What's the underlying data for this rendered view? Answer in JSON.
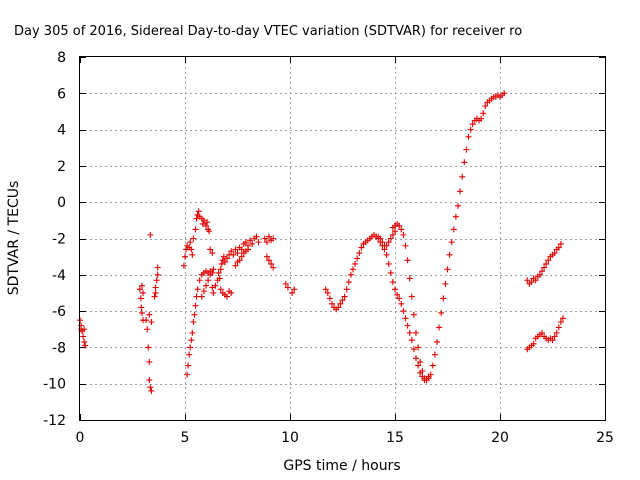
{
  "chart_data": {
    "type": "scatter",
    "title": "Day 305 of 2016, Sidereal Day-to-day VTEC variation (SDTVAR) for receiver ro",
    "xlabel": "GPS time / hours",
    "ylabel": "SDTVAR / TECUs",
    "xlim": [
      0,
      25
    ],
    "ylim": [
      -12,
      8
    ],
    "x_ticks": [
      0,
      5,
      10,
      15,
      20,
      25
    ],
    "y_ticks": [
      -12,
      -10,
      -8,
      -6,
      -4,
      -2,
      0,
      2,
      4,
      6,
      8
    ],
    "grid": true,
    "marker": "+",
    "color": "#e00000",
    "segments": [
      [
        [
          0.0,
          -6.5
        ],
        [
          0.05,
          -6.8
        ],
        [
          0.1,
          -7.1
        ],
        [
          0.15,
          -7.4
        ],
        [
          0.2,
          -7.7
        ],
        [
          0.25,
          -7.9
        ],
        [
          0.2,
          -7.0
        ],
        [
          0.05,
          -7.0
        ]
      ],
      [
        [
          2.85,
          -4.8
        ],
        [
          2.9,
          -5.3
        ],
        [
          2.92,
          -5.8
        ],
        [
          2.95,
          -6.1
        ],
        [
          3.0,
          -6.5
        ],
        [
          2.95,
          -4.6
        ],
        [
          3.0,
          -5.0
        ]
      ],
      [
        [
          3.15,
          -6.5
        ],
        [
          3.2,
          -7.0
        ],
        [
          3.25,
          -8.0
        ],
        [
          3.3,
          -8.8
        ],
        [
          3.3,
          -9.8
        ],
        [
          3.35,
          -10.2
        ],
        [
          3.4,
          -10.4
        ],
        [
          3.3,
          -6.2
        ],
        [
          3.4,
          -6.6
        ],
        [
          3.35,
          -1.8
        ]
      ],
      [
        [
          3.55,
          -5.2
        ],
        [
          3.6,
          -4.7
        ],
        [
          3.65,
          -4.3
        ],
        [
          3.7,
          -4.0
        ],
        [
          3.7,
          -3.6
        ],
        [
          3.6,
          -5.0
        ]
      ],
      [
        [
          4.95,
          -3.5
        ],
        [
          5.0,
          -3.0
        ],
        [
          5.05,
          -2.6
        ],
        [
          5.1,
          -2.4
        ],
        [
          5.2,
          -2.5
        ],
        [
          5.25,
          -2.2
        ],
        [
          5.3,
          -2.6
        ],
        [
          5.35,
          -2.9
        ],
        [
          5.4,
          -2.0
        ],
        [
          5.5,
          -1.5
        ],
        [
          5.55,
          -0.9
        ],
        [
          5.6,
          -0.7
        ],
        [
          5.65,
          -0.5
        ],
        [
          5.7,
          -0.8
        ],
        [
          5.8,
          -0.9
        ],
        [
          5.85,
          -1.2
        ],
        [
          5.9,
          -1.0
        ],
        [
          6.0,
          -1.3
        ],
        [
          6.05,
          -1.1
        ],
        [
          6.1,
          -1.5
        ],
        [
          6.15,
          -1.6
        ],
        [
          6.2,
          -2.6
        ],
        [
          6.3,
          -2.8
        ]
      ],
      [
        [
          5.1,
          -9.5
        ],
        [
          5.15,
          -9.0
        ],
        [
          5.2,
          -8.4
        ],
        [
          5.25,
          -8.0
        ],
        [
          5.3,
          -7.6
        ],
        [
          5.35,
          -7.2
        ],
        [
          5.4,
          -6.6
        ],
        [
          5.45,
          -6.2
        ],
        [
          5.5,
          -5.7
        ],
        [
          5.55,
          -5.2
        ],
        [
          5.6,
          -4.8
        ],
        [
          5.7,
          -4.3
        ],
        [
          5.8,
          -4.0
        ],
        [
          5.9,
          -3.9
        ],
        [
          6.0,
          -3.8
        ],
        [
          6.1,
          -3.9
        ],
        [
          6.2,
          -3.8
        ],
        [
          6.3,
          -3.9
        ],
        [
          6.35,
          -3.7
        ]
      ],
      [
        [
          5.8,
          -5.2
        ],
        [
          5.9,
          -4.9
        ],
        [
          6.0,
          -4.6
        ],
        [
          6.1,
          -4.3
        ],
        [
          6.2,
          -4.0
        ],
        [
          6.3,
          -4.7
        ],
        [
          6.35,
          -5.0
        ],
        [
          6.45,
          -4.6
        ],
        [
          6.55,
          -4.3
        ],
        [
          6.6,
          -3.9
        ],
        [
          6.65,
          -4.2
        ],
        [
          6.7,
          -3.7
        ],
        [
          6.75,
          -3.4
        ],
        [
          6.8,
          -3.2
        ],
        [
          6.85,
          -3.0
        ],
        [
          6.9,
          -3.3
        ],
        [
          7.0,
          -3.1
        ],
        [
          7.1,
          -2.9
        ],
        [
          7.2,
          -2.7
        ],
        [
          7.3,
          -2.9
        ],
        [
          7.4,
          -2.6
        ],
        [
          7.5,
          -2.8
        ],
        [
          7.6,
          -2.5
        ],
        [
          7.7,
          -2.6
        ],
        [
          7.8,
          -2.3
        ],
        [
          7.9,
          -2.2
        ],
        [
          8.0,
          -2.4
        ],
        [
          8.1,
          -2.1
        ],
        [
          8.2,
          -2.3
        ],
        [
          8.3,
          -2.0
        ],
        [
          8.4,
          -1.9
        ],
        [
          8.5,
          -2.2
        ]
      ],
      [
        [
          6.7,
          -4.8
        ],
        [
          6.8,
          -5.0
        ],
        [
          6.9,
          -5.1
        ],
        [
          7.0,
          -5.2
        ],
        [
          7.1,
          -4.9
        ],
        [
          7.2,
          -5.0
        ]
      ],
      [
        [
          7.4,
          -3.5
        ],
        [
          7.5,
          -3.3
        ],
        [
          7.6,
          -3.2
        ],
        [
          7.7,
          -3.0
        ],
        [
          7.8,
          -2.8
        ],
        [
          7.9,
          -2.7
        ],
        [
          8.0,
          -2.6
        ]
      ],
      [
        [
          8.8,
          -2.0
        ],
        [
          8.9,
          -2.2
        ],
        [
          9.0,
          -1.9
        ],
        [
          9.1,
          -2.1
        ],
        [
          9.2,
          -2.0
        ],
        [
          8.9,
          -3.0
        ],
        [
          9.0,
          -3.2
        ],
        [
          9.1,
          -3.4
        ],
        [
          9.2,
          -3.6
        ]
      ],
      [
        [
          9.8,
          -4.5
        ],
        [
          9.9,
          -4.7
        ],
        [
          10.1,
          -5.0
        ],
        [
          10.2,
          -4.8
        ]
      ],
      [
        [
          11.7,
          -4.8
        ],
        [
          11.8,
          -5.0
        ],
        [
          11.9,
          -5.3
        ],
        [
          12.0,
          -5.6
        ],
        [
          12.1,
          -5.8
        ],
        [
          12.2,
          -5.9
        ],
        [
          12.3,
          -5.8
        ],
        [
          12.4,
          -5.6
        ],
        [
          12.5,
          -5.4
        ],
        [
          12.6,
          -5.2
        ],
        [
          12.7,
          -4.8
        ],
        [
          12.8,
          -4.4
        ],
        [
          12.9,
          -4.0
        ],
        [
          13.0,
          -3.7
        ],
        [
          13.1,
          -3.4
        ],
        [
          13.2,
          -3.1
        ],
        [
          13.3,
          -2.8
        ],
        [
          13.4,
          -2.5
        ],
        [
          13.5,
          -2.3
        ],
        [
          13.6,
          -2.2
        ],
        [
          13.7,
          -2.1
        ],
        [
          13.8,
          -2.0
        ],
        [
          13.9,
          -1.9
        ],
        [
          14.0,
          -1.8
        ],
        [
          14.1,
          -1.9
        ],
        [
          14.2,
          -2.0
        ],
        [
          14.3,
          -2.2
        ],
        [
          14.4,
          -2.4
        ],
        [
          14.5,
          -2.6
        ],
        [
          14.6,
          -2.4
        ],
        [
          14.7,
          -2.2
        ],
        [
          14.8,
          -2.0
        ],
        [
          14.9,
          -1.8
        ],
        [
          15.0,
          -1.6
        ]
      ],
      [
        [
          14.2,
          -1.9
        ],
        [
          14.3,
          -2.0
        ],
        [
          14.4,
          -2.2
        ],
        [
          14.5,
          -2.4
        ],
        [
          14.6,
          -2.9
        ],
        [
          14.7,
          -3.4
        ],
        [
          14.8,
          -3.9
        ],
        [
          14.9,
          -4.4
        ],
        [
          15.0,
          -4.8
        ],
        [
          15.1,
          -5.1
        ],
        [
          15.2,
          -5.3
        ],
        [
          15.3,
          -5.6
        ],
        [
          15.4,
          -6.0
        ],
        [
          15.5,
          -6.4
        ],
        [
          15.6,
          -6.8
        ],
        [
          15.7,
          -7.2
        ],
        [
          15.8,
          -7.6
        ],
        [
          15.9,
          -8.1
        ],
        [
          16.0,
          -8.6
        ],
        [
          16.1,
          -9.0
        ],
        [
          16.2,
          -9.4
        ],
        [
          16.3,
          -9.6
        ],
        [
          16.4,
          -9.8
        ],
        [
          16.5,
          -9.8
        ],
        [
          16.6,
          -9.6
        ]
      ],
      [
        [
          14.9,
          -1.4
        ],
        [
          15.0,
          -1.3
        ],
        [
          15.1,
          -1.2
        ],
        [
          15.2,
          -1.3
        ],
        [
          15.3,
          -1.5
        ],
        [
          15.4,
          -1.8
        ],
        [
          15.5,
          -2.4
        ],
        [
          15.6,
          -3.2
        ],
        [
          15.7,
          -4.2
        ],
        [
          15.8,
          -5.2
        ],
        [
          15.9,
          -6.2
        ],
        [
          16.0,
          -7.2
        ],
        [
          16.1,
          -8.0
        ],
        [
          16.2,
          -8.8
        ],
        [
          16.3,
          -9.3
        ],
        [
          16.4,
          -9.7
        ],
        [
          16.5,
          -9.8
        ],
        [
          16.6,
          -9.7
        ],
        [
          16.7,
          -9.5
        ],
        [
          16.8,
          -9.0
        ],
        [
          16.9,
          -8.4
        ],
        [
          17.0,
          -7.7
        ],
        [
          17.1,
          -6.9
        ],
        [
          17.2,
          -6.1
        ],
        [
          17.3,
          -5.3
        ],
        [
          17.4,
          -4.5
        ],
        [
          17.5,
          -3.7
        ],
        [
          17.6,
          -2.9
        ],
        [
          17.7,
          -2.2
        ],
        [
          17.8,
          -1.5
        ],
        [
          17.9,
          -0.8
        ],
        [
          18.0,
          -0.2
        ],
        [
          18.1,
          0.6
        ],
        [
          18.2,
          1.4
        ],
        [
          18.3,
          2.2
        ],
        [
          18.4,
          2.9
        ],
        [
          18.5,
          3.6
        ],
        [
          18.6,
          4.0
        ],
        [
          18.7,
          4.3
        ],
        [
          18.8,
          4.5
        ],
        [
          18.9,
          4.6
        ],
        [
          19.0,
          4.5
        ],
        [
          19.1,
          4.6
        ],
        [
          19.2,
          4.9
        ],
        [
          19.3,
          5.3
        ],
        [
          19.4,
          5.5
        ],
        [
          19.5,
          5.6
        ],
        [
          19.6,
          5.7
        ],
        [
          19.7,
          5.8
        ],
        [
          19.8,
          5.8
        ],
        [
          19.9,
          5.9
        ],
        [
          20.0,
          5.8
        ],
        [
          20.1,
          5.9
        ],
        [
          20.2,
          6.0
        ]
      ],
      [
        [
          21.3,
          -4.3
        ],
        [
          21.4,
          -4.5
        ],
        [
          21.5,
          -4.4
        ],
        [
          21.6,
          -4.2
        ],
        [
          21.7,
          -4.3
        ],
        [
          21.8,
          -4.1
        ],
        [
          21.9,
          -4.0
        ],
        [
          22.0,
          -3.8
        ],
        [
          22.1,
          -3.6
        ],
        [
          22.2,
          -3.4
        ],
        [
          22.3,
          -3.2
        ],
        [
          22.4,
          -3.0
        ],
        [
          22.5,
          -2.9
        ],
        [
          22.6,
          -2.8
        ],
        [
          22.7,
          -2.6
        ],
        [
          22.8,
          -2.5
        ],
        [
          22.9,
          -2.3
        ]
      ],
      [
        [
          21.3,
          -8.1
        ],
        [
          21.4,
          -8.0
        ],
        [
          21.5,
          -7.9
        ],
        [
          21.6,
          -7.8
        ],
        [
          21.7,
          -7.5
        ],
        [
          21.8,
          -7.4
        ],
        [
          21.9,
          -7.3
        ],
        [
          22.0,
          -7.2
        ],
        [
          22.1,
          -7.4
        ],
        [
          22.2,
          -7.5
        ],
        [
          22.3,
          -7.6
        ],
        [
          22.4,
          -7.5
        ],
        [
          22.5,
          -7.6
        ],
        [
          22.6,
          -7.4
        ],
        [
          22.7,
          -7.2
        ],
        [
          22.8,
          -6.9
        ],
        [
          22.9,
          -6.6
        ],
        [
          23.0,
          -6.4
        ]
      ]
    ]
  }
}
